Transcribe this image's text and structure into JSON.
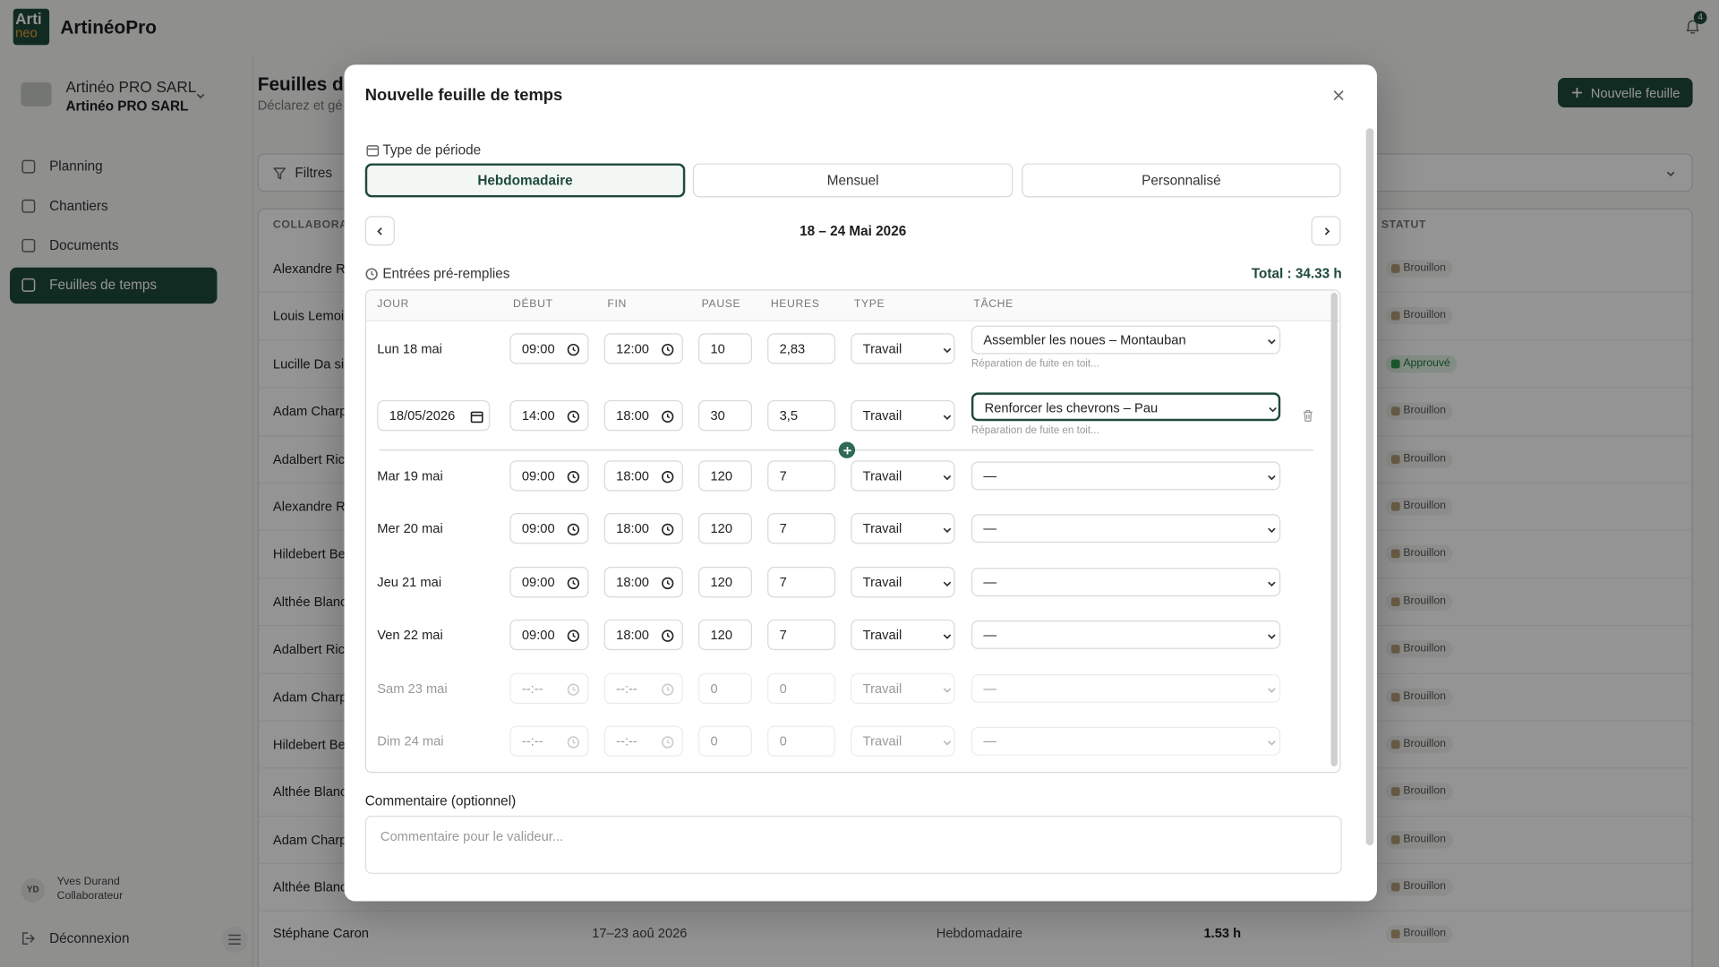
{
  "app": {
    "logo": [
      "Arti",
      "neo"
    ],
    "brand": "ArtinéoPro",
    "notifications": "4"
  },
  "company": {
    "name": "Artinéo PRO SARL",
    "subname": "Artinéo PRO SARL"
  },
  "nav": {
    "items": [
      "Planning",
      "Chantiers",
      "Documents",
      "Feuilles de temps"
    ],
    "active": 3
  },
  "user": {
    "initials": "YD",
    "name": "Yves Durand",
    "role": "Collaborateur",
    "logout": "Déconnexion"
  },
  "page": {
    "title": "Feuilles de",
    "subtitle": "Déclarez et gé",
    "new_button": "Nouvelle feuille",
    "filters": "Filtres"
  },
  "list": {
    "headers": [
      "COLLABORAT",
      "STATUT"
    ],
    "rows": [
      {
        "name": "Alexandre R",
        "status": "Brouillon"
      },
      {
        "name": "Louis Lemoi",
        "status": "Brouillon"
      },
      {
        "name": "Lucille Da si",
        "status": "Approuvé",
        "approved": true
      },
      {
        "name": "Adam Charp",
        "status": "Brouillon"
      },
      {
        "name": "Adalbert Ric",
        "status": "Brouillon"
      },
      {
        "name": "Alexandre R",
        "status": "Brouillon"
      },
      {
        "name": "Hildebert Be",
        "status": "Brouillon"
      },
      {
        "name": "Althée Blanc",
        "status": "Brouillon"
      },
      {
        "name": "Adalbert Ric",
        "status": "Brouillon"
      },
      {
        "name": "Adam Charp",
        "status": "Brouillon"
      },
      {
        "name": "Hildebert Be",
        "status": "Brouillon"
      },
      {
        "name": "Althée Blanc",
        "status": "Brouillon"
      },
      {
        "name": "Adam Charp",
        "status": "Brouillon"
      },
      {
        "name": "Althée Blanc",
        "status": "Brouillon"
      }
    ],
    "last_row": {
      "name": "Stéphane Caron",
      "period": "17–23 aoû 2026",
      "type": "Hebdomadaire",
      "hours": "1.53 h",
      "status": "Brouillon"
    }
  },
  "modal": {
    "title": "Nouvelle feuille de temps",
    "period_label": "Type de période",
    "period_options": [
      "Hebdomadaire",
      "Mensuel",
      "Personnalisé"
    ],
    "period_selected": 0,
    "range": "18 – 24 Mai 2026",
    "entries_label": "Entrées pré-remplies",
    "total": "Total : 34.33 h",
    "columns": [
      "JOUR",
      "DÉBUT",
      "FIN",
      "PAUSE",
      "HEURES",
      "TYPE",
      "TÂCHE"
    ],
    "rows": [
      {
        "day": "Lun 18 mai",
        "start": "09:00",
        "end": "12:00",
        "pause": "10",
        "hours": "2,83",
        "type": "Travail",
        "task": "Assembler les noues – Montauban",
        "note": "Réparation de fuite en toit..."
      },
      {
        "day": "18/05/2026",
        "date_input": true,
        "start": "14:00",
        "end": "18:00",
        "pause": "30",
        "hours": "3,5",
        "type": "Travail",
        "task": "Renforcer les chevrons – Pau",
        "note": "Réparation de fuite en toit...",
        "focused": true,
        "removable": true
      },
      {
        "day": "Mar 19 mai",
        "start": "09:00",
        "end": "18:00",
        "pause": "120",
        "hours": "7",
        "type": "Travail",
        "task": "—"
      },
      {
        "day": "Mer 20 mai",
        "start": "09:00",
        "end": "18:00",
        "pause": "120",
        "hours": "7",
        "type": "Travail",
        "task": "—"
      },
      {
        "day": "Jeu 21 mai",
        "start": "09:00",
        "end": "18:00",
        "pause": "120",
        "hours": "7",
        "type": "Travail",
        "task": "—"
      },
      {
        "day": "Ven 22 mai",
        "start": "09:00",
        "end": "18:00",
        "pause": "120",
        "hours": "7",
        "type": "Travail",
        "task": "—"
      },
      {
        "day": "Sam 23 mai",
        "start": "--:--",
        "end": "--:--",
        "pause": "0",
        "hours": "0",
        "type": "Travail",
        "task": "—",
        "disabled": true
      },
      {
        "day": "Dim 24 mai",
        "start": "--:--",
        "end": "--:--",
        "pause": "0",
        "hours": "0",
        "type": "Travail",
        "task": "—",
        "disabled": true
      }
    ],
    "comment_label": "Commentaire (optionnel)",
    "comment_placeholder": "Commentaire pour le valideur..."
  }
}
